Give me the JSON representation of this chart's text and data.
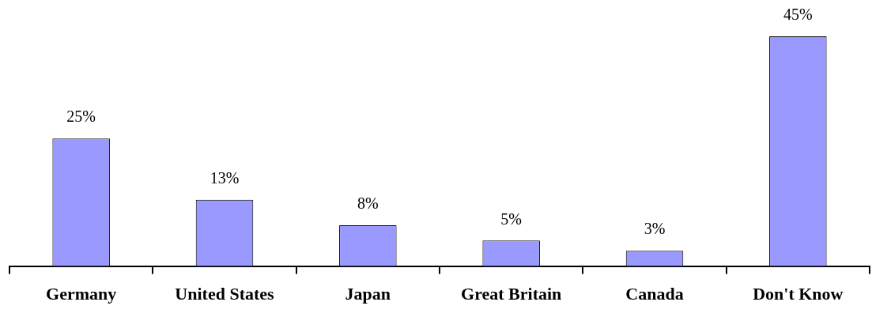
{
  "chart_data": {
    "type": "bar",
    "categories": [
      "Germany",
      "United States",
      "Japan",
      "Great Britain",
      "Canada",
      "Don't Know"
    ],
    "values": [
      25,
      13,
      8,
      5,
      3,
      45
    ],
    "value_labels": [
      "25%",
      "13%",
      "8%",
      "5%",
      "3%",
      "45%"
    ],
    "color": "#9999ff",
    "grid": false,
    "legend": false
  }
}
